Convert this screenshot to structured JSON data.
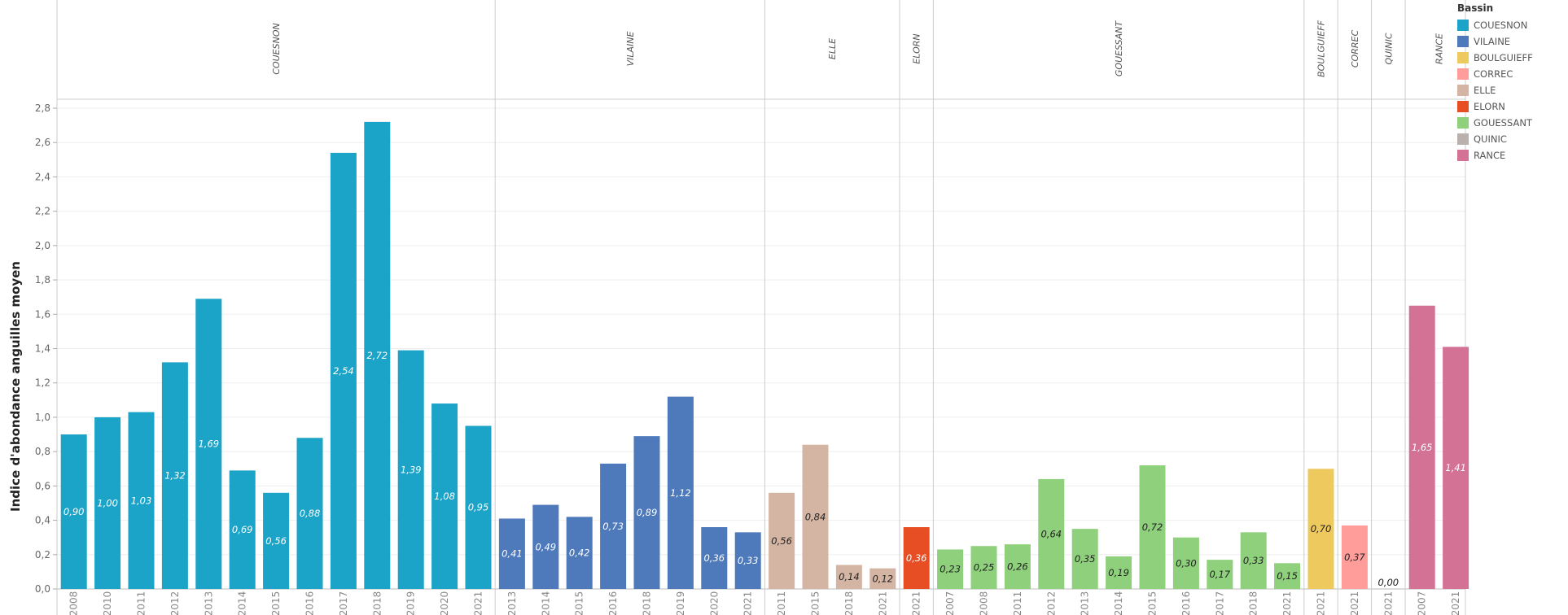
{
  "chart_data": {
    "type": "bar",
    "ylabel": "Indice d'abondance anguilles moyen",
    "ylim": [
      0,
      2.85
    ],
    "yticks": [
      "0,0",
      "0,2",
      "0,4",
      "0,6",
      "0,8",
      "1,0",
      "1,2",
      "1,4",
      "1,6",
      "1,8",
      "2,0",
      "2,2",
      "2,4",
      "2,6",
      "2,8"
    ],
    "grid": true,
    "legend": {
      "title": "Bassin",
      "placement": "right",
      "items": [
        {
          "label": "COUESNON",
          "color": "#1CA3C8"
        },
        {
          "label": "VILAINE",
          "color": "#4E79BB"
        },
        {
          "label": "BOULGUIEFF",
          "color": "#EDC95E"
        },
        {
          "label": "CORREC",
          "color": "#FF9D9A"
        },
        {
          "label": "ELLE",
          "color": "#D4B5A4"
        },
        {
          "label": "ELORN",
          "color": "#E84E24"
        },
        {
          "label": "GOUESSANT",
          "color": "#8ED07B"
        },
        {
          "label": "QUINIC",
          "color": "#BAB0AC"
        },
        {
          "label": "RANCE",
          "color": "#D37295"
        }
      ]
    },
    "panels": [
      {
        "name": "COUESNON",
        "color": "#1CA3C8",
        "label_color": "#ffffff",
        "categories": [
          "2008",
          "2010",
          "2011",
          "2012",
          "2013",
          "2014",
          "2015",
          "2016",
          "2017",
          "2018",
          "2019",
          "2020",
          "2021"
        ],
        "values": [
          0.9,
          1.0,
          1.03,
          1.32,
          1.69,
          0.69,
          0.56,
          0.88,
          2.54,
          2.72,
          1.39,
          1.08,
          0.95
        ],
        "labels": [
          "0,90",
          "1,00",
          "1,03",
          "1,32",
          "1,69",
          "0,69",
          "0,56",
          "0,88",
          "2,54",
          "2,72",
          "1,39",
          "1,08",
          "0,95"
        ]
      },
      {
        "name": "VILAINE",
        "color": "#4E79BB",
        "label_color": "#ffffff",
        "categories": [
          "2013",
          "2014",
          "2015",
          "2016",
          "2018",
          "2019",
          "2020",
          "2021"
        ],
        "values": [
          0.41,
          0.49,
          0.42,
          0.73,
          0.89,
          1.12,
          0.36,
          0.33
        ],
        "labels": [
          "0,41",
          "0,49",
          "0,42",
          "0,73",
          "0,89",
          "1,12",
          "0,36",
          "0,33"
        ]
      },
      {
        "name": "ELLE",
        "color": "#D4B5A4",
        "label_color": "#222222",
        "categories": [
          "2011",
          "2015",
          "2018",
          "2021"
        ],
        "values": [
          0.56,
          0.84,
          0.14,
          0.12
        ],
        "labels": [
          "0,56",
          "0,84",
          "0,14",
          "0,12"
        ]
      },
      {
        "name": "ELORN",
        "color": "#E84E24",
        "label_color": "#ffffff",
        "categories": [
          "2021"
        ],
        "values": [
          0.36
        ],
        "labels": [
          "0,36"
        ]
      },
      {
        "name": "GOUESSANT",
        "color": "#8ED07B",
        "label_color": "#222222",
        "categories": [
          "2007",
          "2008",
          "2011",
          "2012",
          "2013",
          "2014",
          "2015",
          "2016",
          "2017",
          "2018",
          "2021"
        ],
        "values": [
          0.23,
          0.25,
          0.26,
          0.64,
          0.35,
          0.19,
          0.72,
          0.3,
          0.17,
          0.33,
          0.15
        ],
        "labels": [
          "0,23",
          "0,25",
          "0,26",
          "0,64",
          "0,35",
          "0,19",
          "0,72",
          "0,30",
          "0,17",
          "0,33",
          "0,15"
        ]
      },
      {
        "name": "BOULGUIEFF",
        "color": "#EDC95E",
        "label_color": "#222222",
        "categories": [
          "2021"
        ],
        "values": [
          0.7
        ],
        "labels": [
          "0,70"
        ]
      },
      {
        "name": "CORREC",
        "color": "#FF9D9A",
        "label_color": "#222222",
        "categories": [
          "2021"
        ],
        "values": [
          0.37
        ],
        "labels": [
          "0,37"
        ]
      },
      {
        "name": "QUINIC",
        "color": "#BAB0AC",
        "label_color": "#222222",
        "categories": [
          "2021"
        ],
        "values": [
          0.0
        ],
        "labels": [
          "0,00"
        ]
      },
      {
        "name": "RANCE",
        "color": "#D37295",
        "label_color": "#ffffff",
        "categories": [
          "2007",
          "2021"
        ],
        "values": [
          1.65,
          1.41
        ],
        "labels": [
          "1,65",
          "1,41"
        ]
      }
    ]
  }
}
